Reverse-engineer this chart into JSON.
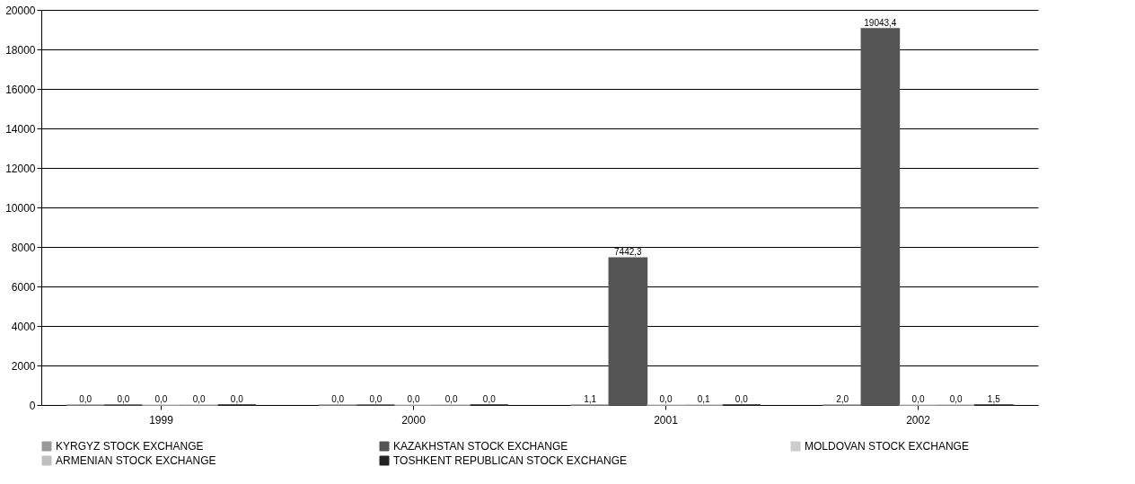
{
  "chart_data": {
    "type": "bar",
    "categories": [
      "1999",
      "2000",
      "2001",
      "2002"
    ],
    "series": [
      {
        "name": "KYRGYZ STOCK EXCHANGE",
        "color": "#999999",
        "values": [
          0.0,
          0.0,
          1.1,
          2.0
        ],
        "value_labels": [
          "0,0",
          "0,0",
          "1,1",
          "2,0"
        ]
      },
      {
        "name": "KAZAKHSTAN STOCK EXCHANGE",
        "color": "#555555",
        "values": [
          0.0,
          0.0,
          7442.3,
          19043.4
        ],
        "value_labels": [
          "0,0",
          "0,0",
          "7442,3",
          "19043,4"
        ]
      },
      {
        "name": "MOLDOVAN STOCK EXCHANGE",
        "color": "#cccccc",
        "values": [
          0.0,
          0.0,
          0.0,
          0.0
        ],
        "value_labels": [
          "0,0",
          "0,0",
          "0,0",
          "0,0"
        ]
      },
      {
        "name": "ARMENIAN STOCK EXCHANGE",
        "color": "#c0c0c0",
        "values": [
          0.0,
          0.0,
          0.1,
          0.0
        ],
        "value_labels": [
          "0,0",
          "0,0",
          "0,1",
          "0,0"
        ]
      },
      {
        "name": "TOSHKENT REPUBLICAN STOCK EXCHANGE",
        "color": "#222222",
        "values": [
          0.0,
          0.0,
          0.0,
          1.5
        ],
        "value_labels": [
          "0,0",
          "0,0",
          "0,0",
          "1,5"
        ]
      }
    ],
    "ylim": [
      0,
      20000
    ],
    "yticks": [
      0,
      2000,
      4000,
      6000,
      8000,
      10000,
      12000,
      14000,
      16000,
      18000,
      20000
    ],
    "grid": "y",
    "legend": "bottom"
  }
}
